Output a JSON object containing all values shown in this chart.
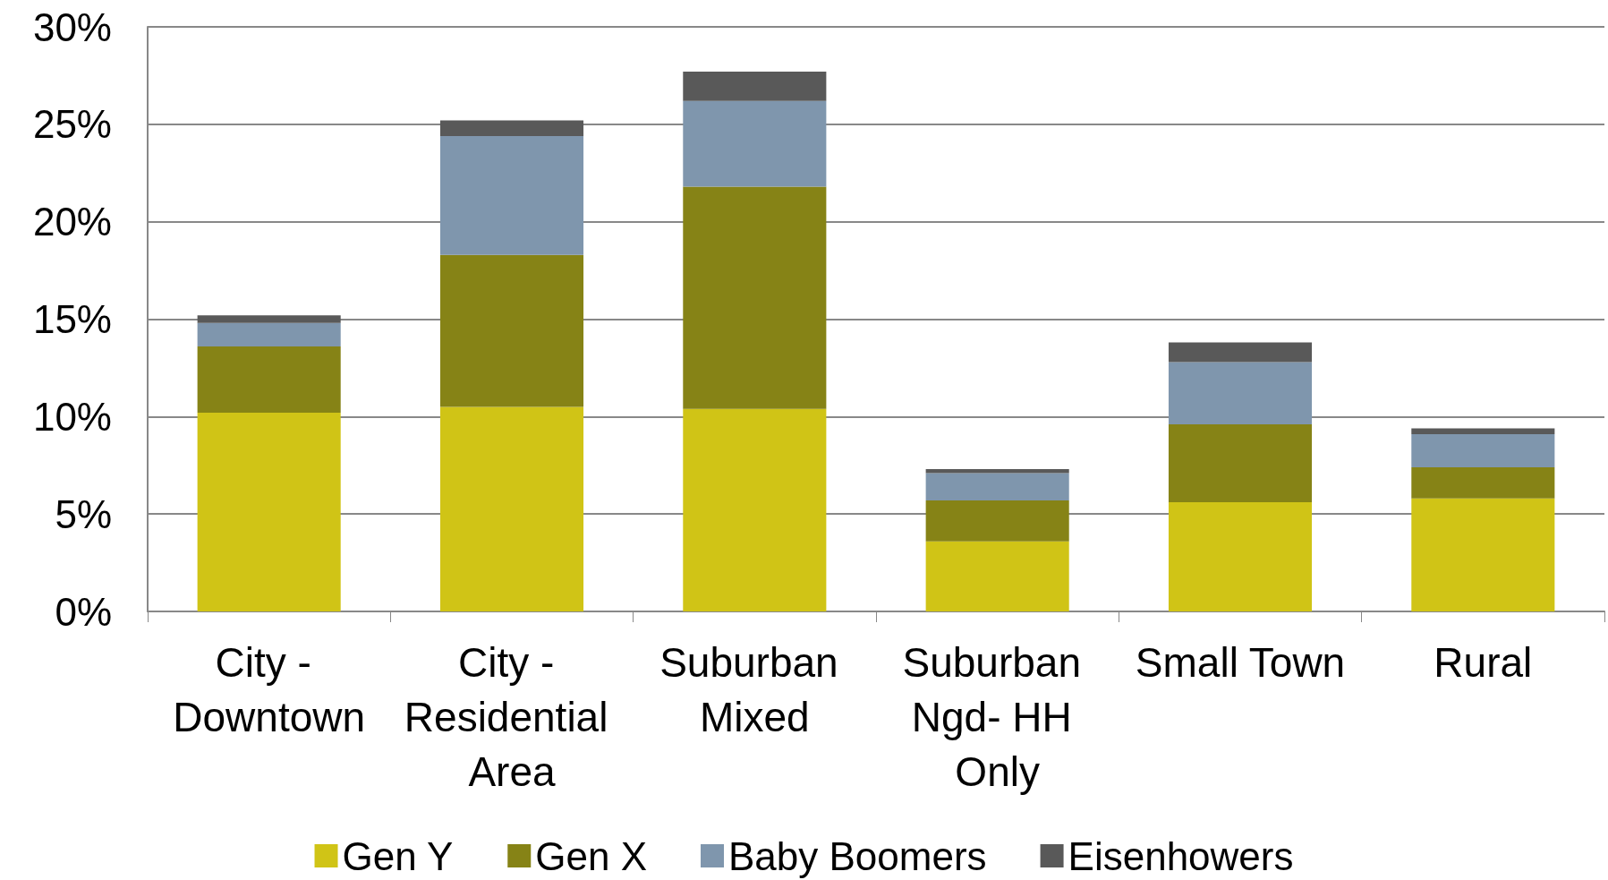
{
  "chart_data": {
    "type": "bar",
    "stacked": true,
    "categories": [
      "City - Downtown",
      "City - Residential Area",
      "Suburban Mixed",
      "Suburban Ngd- HH Only",
      "Small Town",
      "Rural"
    ],
    "series": [
      {
        "name": "Gen Y",
        "color": "#d0c416",
        "values": [
          10.2,
          10.5,
          10.4,
          3.6,
          5.6,
          5.8
        ]
      },
      {
        "name": "Gen X",
        "color": "#868316",
        "values": [
          3.4,
          7.8,
          11.4,
          2.1,
          4.0,
          1.6
        ]
      },
      {
        "name": "Baby Boomers",
        "color": "#7f96ad",
        "values": [
          1.2,
          6.1,
          4.4,
          1.4,
          3.2,
          1.7
        ]
      },
      {
        "name": "Eisenhowers",
        "color": "#595959",
        "values": [
          0.4,
          0.8,
          1.5,
          0.2,
          1.0,
          0.3
        ]
      }
    ],
    "ylim": [
      0,
      30
    ],
    "yticks": [
      {
        "value": 0,
        "label": "0%"
      },
      {
        "value": 5,
        "label": "5%"
      },
      {
        "value": 10,
        "label": "10%"
      },
      {
        "value": 15,
        "label": "15%"
      },
      {
        "value": 20,
        "label": "20%"
      },
      {
        "value": 25,
        "label": "25%"
      },
      {
        "value": 30,
        "label": "30%"
      }
    ],
    "grid": "y",
    "legend": "bottom"
  }
}
